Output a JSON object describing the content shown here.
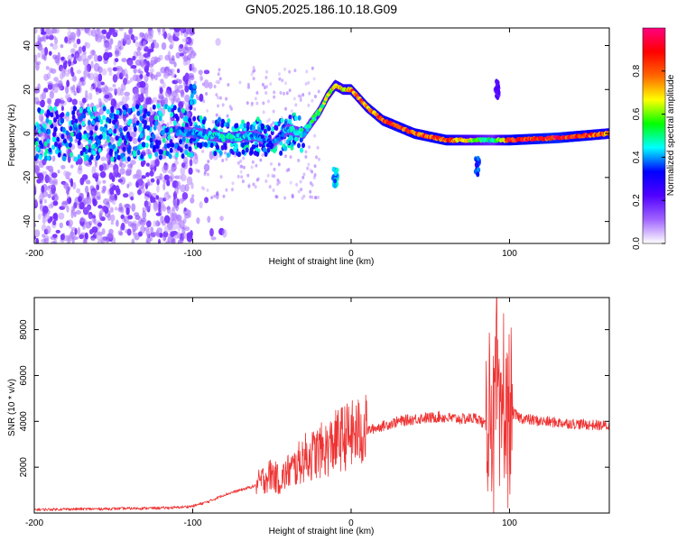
{
  "title": "GN05.2025.186.10.18.G09",
  "chart_data": [
    {
      "type": "heatmap",
      "xlabel": "Height of straight line (km)",
      "ylabel": "Frequency (Hz)",
      "xlim": [
        -200,
        163
      ],
      "ylim": [
        -50,
        48
      ],
      "xticks": [
        -200,
        -100,
        0,
        100
      ],
      "yticks": [
        -40,
        -20,
        0,
        20,
        40
      ],
      "colorbar": {
        "label": "Normalized spectral amplitude",
        "range": [
          0,
          1
        ],
        "ticks": [
          0.0,
          0.2,
          0.4,
          0.6,
          0.8
        ],
        "tick_labels": [
          "0.0",
          "0.2",
          "0.4",
          "0.6",
          "0.8"
        ],
        "colors": [
          "#ffffff",
          "#a064ff",
          "#5000ff",
          "#0000ff",
          "#00ffff",
          "#00ff00",
          "#ffff00",
          "#ff6600",
          "#ff0000",
          "#ff0080"
        ]
      },
      "ridge": [
        {
          "x": -200,
          "f": 0,
          "a": 0.3
        },
        {
          "x": -150,
          "f": 0,
          "a": 0.35
        },
        {
          "x": -110,
          "f": 1,
          "a": 0.4
        },
        {
          "x": -95,
          "f": 0,
          "a": 0.45
        },
        {
          "x": -80,
          "f": -2,
          "a": 0.5
        },
        {
          "x": -60,
          "f": -1,
          "a": 0.45
        },
        {
          "x": -50,
          "f": -5,
          "a": 0.4
        },
        {
          "x": -40,
          "f": 2,
          "a": 0.45
        },
        {
          "x": -30,
          "f": 0,
          "a": 0.5
        },
        {
          "x": -25,
          "f": 5,
          "a": 0.55
        },
        {
          "x": -20,
          "f": 10,
          "a": 0.6
        },
        {
          "x": -15,
          "f": 17,
          "a": 0.7
        },
        {
          "x": -10,
          "f": 22,
          "a": 0.8
        },
        {
          "x": -5,
          "f": 20,
          "a": 0.75
        },
        {
          "x": 0,
          "f": 20,
          "a": 0.85
        },
        {
          "x": 10,
          "f": 12,
          "a": 0.85
        },
        {
          "x": 20,
          "f": 6,
          "a": 0.9
        },
        {
          "x": 30,
          "f": 3,
          "a": 0.9
        },
        {
          "x": 40,
          "f": 0,
          "a": 0.9
        },
        {
          "x": 60,
          "f": -3,
          "a": 0.95
        },
        {
          "x": 80,
          "f": -3,
          "a": 0.6
        },
        {
          "x": 90,
          "f": -3,
          "a": 0.5
        },
        {
          "x": 100,
          "f": -3,
          "a": 0.95
        },
        {
          "x": 130,
          "f": -2,
          "a": 1.0
        },
        {
          "x": 163,
          "f": 0,
          "a": 0.85
        }
      ],
      "features": [
        {
          "x": -10,
          "f": -20,
          "a": 0.5
        },
        {
          "x": -100,
          "f": 18,
          "a": 0.45
        },
        {
          "x": 80,
          "f": -15,
          "a": 0.4
        },
        {
          "x": 92,
          "f": 20,
          "a": 0.25
        }
      ]
    },
    {
      "type": "line",
      "xlabel": "Height of straight line (km)",
      "ylabel": "SNR (10 * v/v)",
      "xlim": [
        -200,
        163
      ],
      "ylim": [
        0,
        9400
      ],
      "xticks": [
        -200,
        -100,
        0,
        100
      ],
      "yticks": [
        2000,
        4000,
        6000,
        8000
      ],
      "color": "#ee3333",
      "series": [
        {
          "x": [
            -200,
            -180,
            -160,
            -140,
            -120,
            -110,
            -100,
            -90,
            -80,
            -70,
            -60,
            -55,
            -50,
            -45,
            -40,
            -35,
            -30,
            -25,
            -20,
            -15,
            -10,
            -5,
            0,
            5,
            10,
            15,
            20,
            25,
            30,
            35,
            40,
            45,
            50,
            55,
            60,
            70,
            80,
            85,
            88,
            90,
            92,
            94,
            96,
            98,
            100,
            105,
            110,
            120,
            130,
            140,
            150,
            163
          ],
          "y": [
            150,
            170,
            180,
            200,
            220,
            240,
            300,
            500,
            800,
            1000,
            1200,
            1500,
            1700,
            1400,
            1800,
            2000,
            2400,
            2500,
            2700,
            2800,
            3100,
            3300,
            3400,
            3500,
            3600,
            3700,
            3800,
            3900,
            4000,
            4050,
            4100,
            4150,
            4150,
            4200,
            4150,
            4100,
            4150,
            3800,
            5500,
            3000,
            6200,
            2000,
            5800,
            3500,
            4500,
            4200,
            4100,
            4000,
            3950,
            3900,
            3850,
            3800
          ]
        }
      ]
    }
  ]
}
